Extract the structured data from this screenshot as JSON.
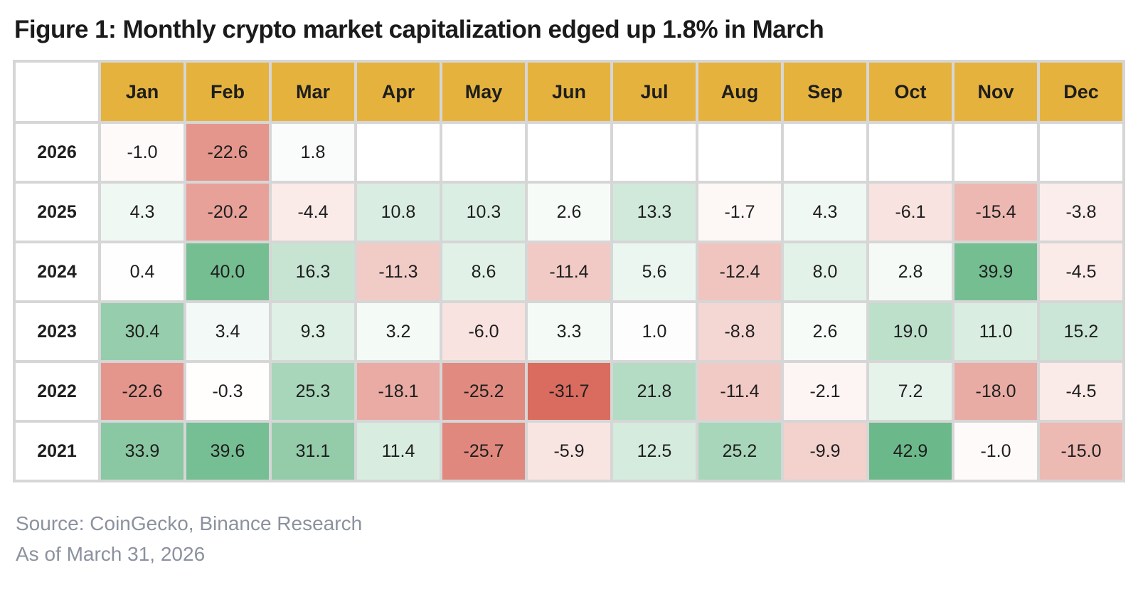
{
  "figure": {
    "title": "Figure 1: Monthly crypto market capitalization edged up 1.8% in March",
    "source_line1": "Source: CoinGecko, Binance Research",
    "source_line2": "As of March 31, 2026"
  },
  "colors": {
    "header_gold": "#e5b33d",
    "grid_gray": "#d6d6d6",
    "positive_green_end": "#6bb98a",
    "negative_red_end": "#d96c5f",
    "cell_text": "#1e1e1e",
    "title_text": "#1b1b1b",
    "source_gray": "#8b929e"
  },
  "chart_data": {
    "type": "heatmap",
    "title": "Figure 1: Monthly crypto market capitalization edged up 1.8% in March",
    "unit": "percent_monthly_change",
    "columns": [
      "Jan",
      "Feb",
      "Mar",
      "Apr",
      "May",
      "Jun",
      "Jul",
      "Aug",
      "Sep",
      "Oct",
      "Nov",
      "Dec"
    ],
    "rows": [
      {
        "year": "2026",
        "values": [
          -1.0,
          -22.6,
          1.8,
          null,
          null,
          null,
          null,
          null,
          null,
          null,
          null,
          null
        ]
      },
      {
        "year": "2025",
        "values": [
          4.3,
          -20.2,
          -4.4,
          10.8,
          10.3,
          2.6,
          13.3,
          -1.7,
          4.3,
          -6.1,
          -15.4,
          -3.8
        ]
      },
      {
        "year": "2024",
        "values": [
          0.4,
          40.0,
          16.3,
          -11.3,
          8.6,
          -11.4,
          5.6,
          -12.4,
          8.0,
          2.8,
          39.9,
          -4.5
        ]
      },
      {
        "year": "2023",
        "values": [
          30.4,
          3.4,
          9.3,
          3.2,
          -6.0,
          3.3,
          1.0,
          -8.8,
          2.6,
          19.0,
          11.0,
          15.2
        ]
      },
      {
        "year": "2022",
        "values": [
          -22.6,
          -0.3,
          25.3,
          -18.1,
          -25.2,
          -31.7,
          21.8,
          -11.4,
          -2.1,
          7.2,
          -18.0,
          -4.5
        ]
      },
      {
        "year": "2021",
        "values": [
          33.9,
          39.6,
          31.1,
          11.4,
          -25.7,
          -5.9,
          12.5,
          25.2,
          -9.9,
          42.9,
          -1.0,
          -15.0
        ]
      }
    ],
    "color_scale": {
      "min": -31.7,
      "mid": 0.0,
      "max": 42.9,
      "min_color": "#d96c5f",
      "mid_color": "#ffffff",
      "max_color": "#6bb98a"
    },
    "legend_position": "none",
    "grid": true
  }
}
